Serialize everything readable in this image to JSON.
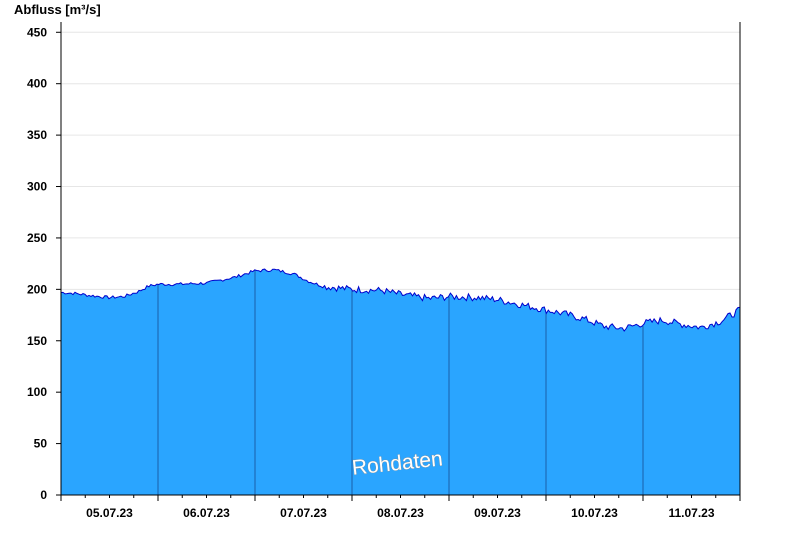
{
  "chart_data": {
    "type": "area",
    "ylabel": "Abfluss [m³/s]",
    "xlabel": "",
    "title": "",
    "ylim": [
      0,
      460
    ],
    "yticks": [
      0,
      50,
      100,
      150,
      200,
      250,
      300,
      350,
      400,
      450
    ],
    "xlim": [
      0,
      7
    ],
    "day_ticks": [
      {
        "pos": 0.5,
        "label": "05.07.23"
      },
      {
        "pos": 1.5,
        "label": "06.07.23"
      },
      {
        "pos": 2.5,
        "label": "07.07.23"
      },
      {
        "pos": 3.5,
        "label": "08.07.23"
      },
      {
        "pos": 4.5,
        "label": "09.07.23"
      },
      {
        "pos": 5.5,
        "label": "10.07.23"
      },
      {
        "pos": 6.5,
        "label": "11.07.23"
      }
    ],
    "grid": true,
    "fill_color": "#2aa5ff",
    "line_color": "#0000cc",
    "watermark": "Rohdaten",
    "series": [
      {
        "x": [
          0,
          0.15,
          0.3,
          0.5,
          0.65,
          0.8,
          0.9,
          1.0,
          1.2,
          1.5,
          1.8,
          2.0,
          2.2,
          2.4,
          2.55,
          2.7,
          3.0,
          3.3,
          3.5,
          3.8,
          4.0,
          4.3,
          4.5,
          4.8,
          5.0,
          5.2,
          5.4,
          5.6,
          5.8,
          6.0,
          6.2,
          6.4,
          6.6,
          6.8,
          7.0
        ],
        "y": [
          197,
          196,
          194,
          192,
          193,
          198,
          203,
          205,
          205,
          206,
          212,
          218,
          219,
          215,
          208,
          203,
          200,
          199,
          195,
          191,
          193,
          192,
          190,
          184,
          180,
          176,
          171,
          164,
          162,
          167,
          170,
          166,
          163,
          169,
          180
        ]
      }
    ]
  }
}
